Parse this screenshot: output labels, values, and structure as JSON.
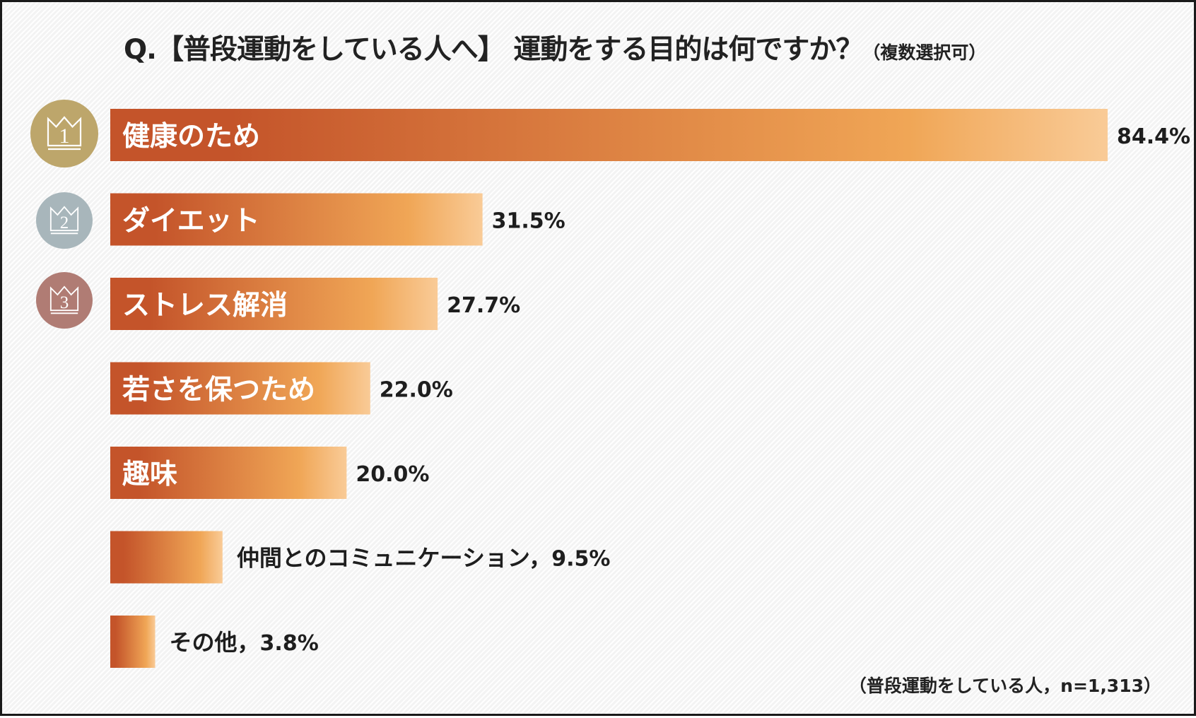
{
  "title": {
    "main": "Q.【普段運動をしている人へ】 運動をする目的は何ですか？",
    "note": "（複数選択可）"
  },
  "footnote": "（普段運動をしている人，n=1,313）",
  "colors": {
    "bar_dark": "#c4542a",
    "bar_mid": "#f0a656",
    "bar_light": "#f9cb97",
    "rank_1": "#bda66b",
    "rank_2": "#a8b6bb",
    "rank_3": "#b07c74"
  },
  "rank_badges": [
    {
      "rank": 1,
      "label": "1",
      "icon": "crown-icon"
    },
    {
      "rank": 2,
      "label": "2",
      "icon": "crown-icon"
    },
    {
      "rank": 3,
      "label": "3",
      "icon": "crown-icon"
    }
  ],
  "chart_data": {
    "type": "bar",
    "orientation": "horizontal",
    "title": "Q.【普段運動をしている人へ】 運動をする目的は何ですか？（複数選択可）",
    "categories": [
      "健康のため",
      "ダイエット",
      "ストレス解消",
      "若さを保つため",
      "趣味",
      "仲間とのコミュニケーション",
      "その他"
    ],
    "values": [
      84.4,
      31.5,
      27.7,
      22.0,
      20.0,
      9.5,
      3.8
    ],
    "value_labels": [
      "84.4%",
      "31.5%",
      "27.7%",
      "22.0%",
      "20.0%",
      "9.5%",
      "3.8%"
    ],
    "label_inside": [
      true,
      true,
      true,
      true,
      true,
      false,
      false
    ],
    "unit": "%",
    "xlim": [
      0,
      84.4
    ],
    "grid": false,
    "legend": "none"
  }
}
